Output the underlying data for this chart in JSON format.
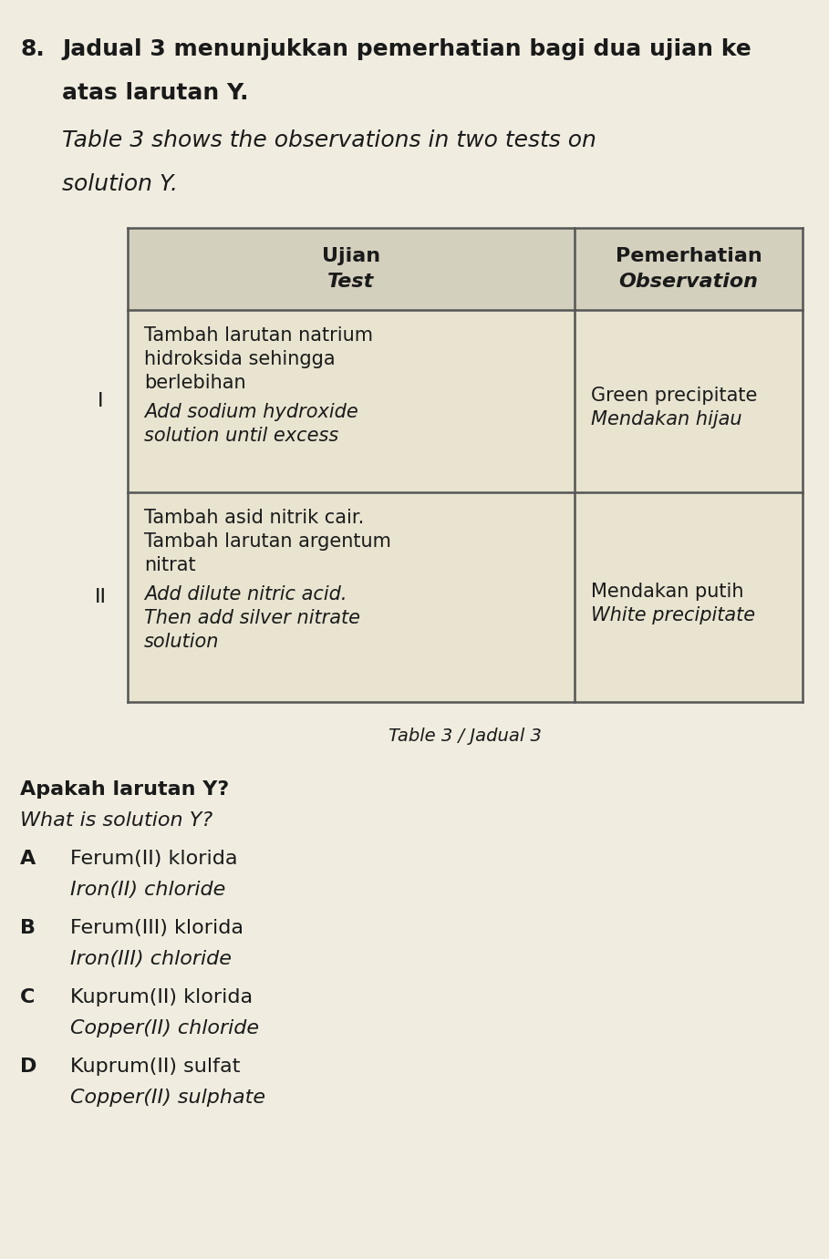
{
  "bg_color": "#f0ede0",
  "question_number": "8.",
  "question_text_line1": "Jadual 3 menunjukkan pemerhatian bagi dua ujian ke",
  "question_text_line2": "atas larutan Y.",
  "question_text_line3": "Table 3 shows the observations in two tests on",
  "question_text_line4": "solution Y.",
  "table_caption": "Table 3 / Jadual 3",
  "header_col1": "Ujian",
  "header_col1b": "Test",
  "header_col2": "Pemerhatian",
  "header_col2b": "Observation",
  "row1_num": "I",
  "row1_malay": [
    "Tambah larutan natrium",
    "hidroksida sehingga",
    "berlebihan"
  ],
  "row1_english": [
    "Add sodium hydroxide",
    "solution until excess"
  ],
  "row1_obs_main": "Green precipitate",
  "row1_obs_italic": "Mendakan hijau",
  "row2_num": "II",
  "row2_malay": [
    "Tambah asid nitrik cair.",
    "Tambah larutan argentum",
    "nitrat"
  ],
  "row2_english": [
    "Add dilute nitric acid.",
    "Then add silver nitrate",
    "solution"
  ],
  "row2_obs_main": "Mendakan putih",
  "row2_obs_italic": "White precipitate",
  "question_q1": "Apakah larutan Y?",
  "question_q1_english": "What is solution Y?",
  "options": [
    {
      "letter": "A",
      "malay": "Ferum(II) klorida",
      "english": "Iron(II) chloride"
    },
    {
      "letter": "B",
      "malay": "Ferum(III) klorida",
      "english": "Iron(III) chloride"
    },
    {
      "letter": "C",
      "malay": "Kuprum(II) klorida",
      "english": "Copper(II) chloride"
    },
    {
      "letter": "D",
      "malay": "Kuprum(II) sulfat",
      "english": "Copper(II) sulphate"
    }
  ],
  "text_color": "#1a1a1a",
  "table_line_color": "#555555",
  "table_bg_header": "#d4d0be",
  "table_bg_row": "#e8e4d0",
  "font_size_q_bold": 18,
  "font_size_q_italic": 18,
  "font_size_table_header": 16,
  "font_size_table_body": 15,
  "font_size_caption": 14,
  "font_size_options": 16
}
